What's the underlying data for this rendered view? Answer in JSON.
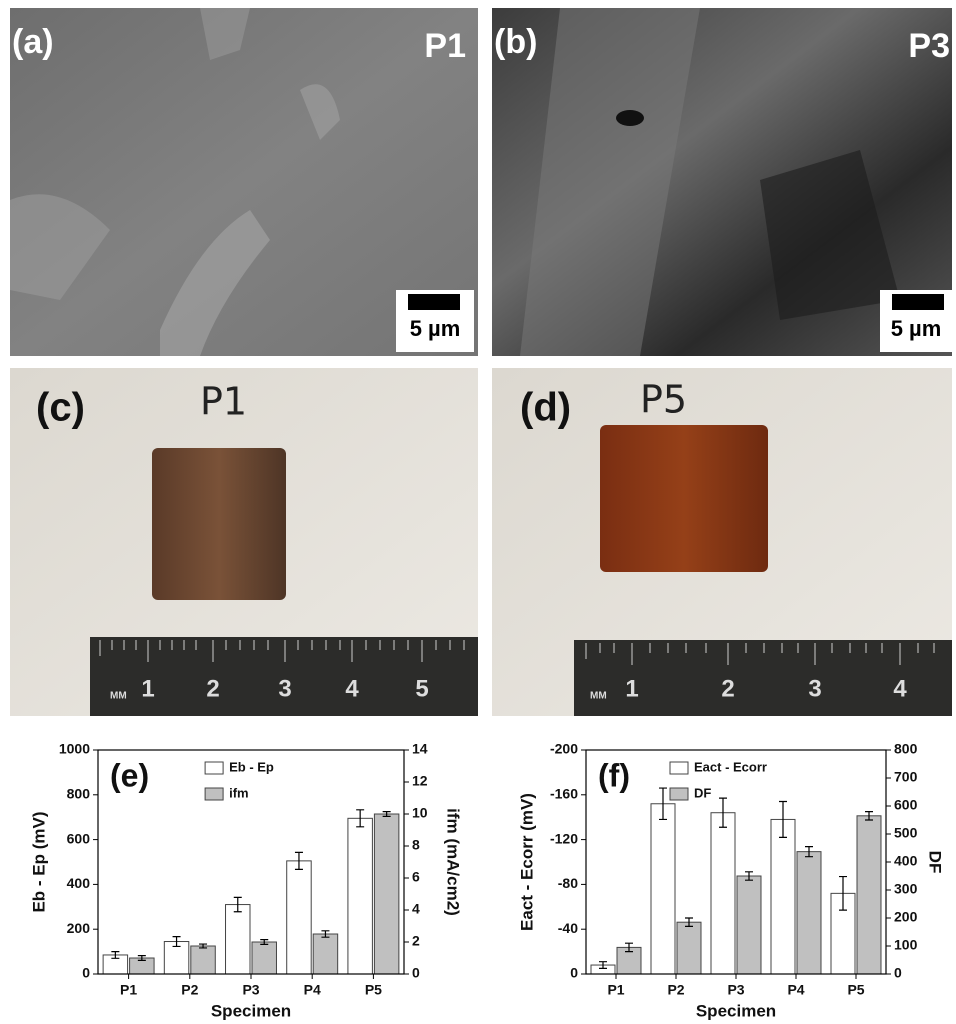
{
  "image_panels": [
    {
      "tag": "(a)",
      "label": "P1",
      "scale_bar": "5 µm"
    },
    {
      "tag": "(b)",
      "label": "P3",
      "scale_bar": "5 µm"
    },
    {
      "tag": "(c)",
      "handwriting": "P1",
      "ruler_unit": "MM",
      "ruler": [
        "1",
        "2",
        "3",
        "4",
        "5"
      ]
    },
    {
      "tag": "(d)",
      "handwriting": "P5",
      "ruler_unit": "MM",
      "ruler": [
        "1",
        "2",
        "3",
        "4"
      ]
    }
  ],
  "chart_data": [
    {
      "type": "bar",
      "tag": "(e)",
      "categories": [
        "P1",
        "P2",
        "P3",
        "P4",
        "P5"
      ],
      "xlabel": "Specimen",
      "ylabel": "Eb - Ep (mV)",
      "y2label": "ifm (mA/cm2)",
      "ylim": [
        0,
        1000
      ],
      "yticks": [
        0,
        200,
        400,
        600,
        800,
        1000
      ],
      "y2lim": [
        0,
        14
      ],
      "y2ticks": [
        0,
        2,
        4,
        6,
        8,
        10,
        12,
        14
      ],
      "legend": "upper-center",
      "series": [
        {
          "name": "Eb - Ep",
          "color": "#ffffff",
          "values": [
            85,
            145,
            310,
            505,
            695
          ],
          "errors": [
            15,
            22,
            32,
            38,
            38
          ]
        },
        {
          "name": "ifm",
          "color": "#c0c0c0",
          "axis": "y2",
          "values": [
            1.0,
            1.75,
            2.0,
            2.5,
            10.0
          ],
          "errors": [
            0.15,
            0.12,
            0.15,
            0.2,
            0.15
          ]
        }
      ]
    },
    {
      "type": "bar",
      "tag": "(f)",
      "categories": [
        "P1",
        "P2",
        "P3",
        "P4",
        "P5"
      ],
      "xlabel": "Specimen",
      "ylabel": "Eact - Ecorr (mV)",
      "y2label": "DF",
      "ylim": [
        0,
        -200
      ],
      "yticks": [
        0,
        -40,
        -80,
        -120,
        -160,
        -200
      ],
      "y2lim": [
        0,
        800
      ],
      "y2ticks": [
        0,
        100,
        200,
        300,
        400,
        500,
        600,
        700,
        800
      ],
      "legend": "upper-left",
      "series": [
        {
          "name": "Eact - Ecorr",
          "color": "#ffffff",
          "values": [
            -8,
            -152,
            -144,
            -138,
            -72
          ],
          "errors": [
            3,
            14,
            13,
            16,
            15
          ]
        },
        {
          "name": "DF",
          "color": "#c0c0c0",
          "axis": "y2",
          "values": [
            95,
            185,
            350,
            437,
            565
          ],
          "errors": [
            15,
            15,
            15,
            18,
            15
          ]
        }
      ]
    }
  ]
}
